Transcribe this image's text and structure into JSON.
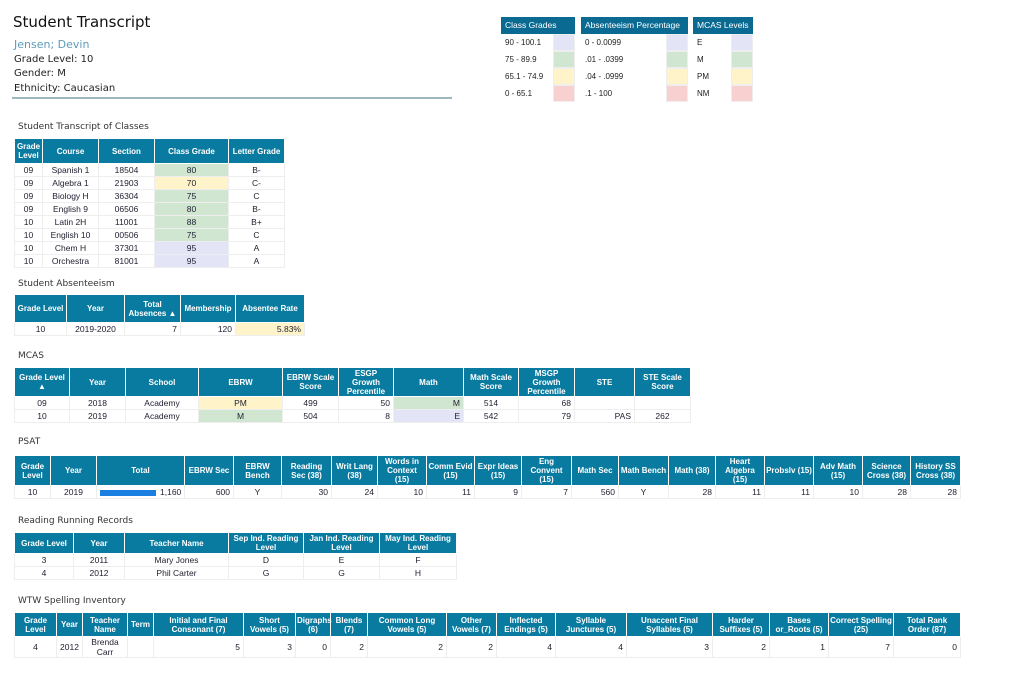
{
  "header": {
    "title": "Student Transcript",
    "student_name": "Jensen; Devin",
    "grade_level": "Grade Level: 10",
    "gender": "Gender: M",
    "ethnicity": "Ethnicity: Caucasian"
  },
  "colors": {
    "header": "#0a7ba0",
    "blue": "#e4e4f7",
    "green": "#d1e6d1",
    "yellow": "#fff4c9",
    "red": "#f9d0d0"
  },
  "legends": [
    {
      "title": "Class Grades",
      "rows": [
        {
          "label": "90 - 100.1",
          "color": "blue"
        },
        {
          "label": "75 - 89.9",
          "color": "green"
        },
        {
          "label": "65.1 - 74.9",
          "color": "yellow"
        },
        {
          "label": "0 - 65.1",
          "color": "red"
        }
      ]
    },
    {
      "title": "Absenteeism Percentage",
      "rows": [
        {
          "label": "0 - 0.0099",
          "color": "blue"
        },
        {
          "label": ".01 - .0399",
          "color": "green"
        },
        {
          "label": ".04 - .0999",
          "color": "yellow"
        },
        {
          "label": ".1 - 100",
          "color": "red"
        }
      ]
    },
    {
      "title": "MCAS Levels",
      "rows": [
        {
          "label": "E",
          "color": "blue"
        },
        {
          "label": "M",
          "color": "green"
        },
        {
          "label": "PM",
          "color": "yellow"
        },
        {
          "label": "NM",
          "color": "red"
        }
      ]
    }
  ],
  "tables": {
    "transcript": {
      "title": "Student Transcript of Classes",
      "columns": [
        "Grade Level",
        "Course",
        "Section",
        "Class Grade",
        "Letter Grade"
      ],
      "rows": [
        [
          "09",
          "Spanish 1",
          "18504",
          "80",
          "B-"
        ],
        [
          "09",
          "Algebra 1",
          "21903",
          "70",
          "C-"
        ],
        [
          "09",
          "Biology H",
          "36304",
          "75",
          "C"
        ],
        [
          "09",
          "English 9",
          "06506",
          "80",
          "B-"
        ],
        [
          "10",
          "Latin 2H",
          "11001",
          "88",
          "B+"
        ],
        [
          "10",
          "English 10",
          "00506",
          "75",
          "C"
        ],
        [
          "10",
          "Chem H",
          "37301",
          "95",
          "A"
        ],
        [
          "10",
          "Orchestra",
          "81001",
          "95",
          "A"
        ]
      ],
      "cell_colors": [
        [
          null,
          null,
          null,
          "green",
          null
        ],
        [
          null,
          null,
          null,
          "yellow",
          null
        ],
        [
          null,
          null,
          null,
          "green",
          null
        ],
        [
          null,
          null,
          null,
          "green",
          null
        ],
        [
          null,
          null,
          null,
          "green",
          null
        ],
        [
          null,
          null,
          null,
          "green",
          null
        ],
        [
          null,
          null,
          null,
          "blue",
          null
        ],
        [
          null,
          null,
          null,
          "blue",
          null
        ]
      ]
    },
    "absenteeism": {
      "title": "Student Absenteeism",
      "columns": [
        "Grade Level",
        "Year",
        "Total Absences ▲",
        "Membership",
        "Absentee Rate"
      ],
      "rows": [
        [
          "10",
          "2019-2020",
          "7",
          "120",
          "5.83%"
        ]
      ],
      "cell_colors": [
        [
          null,
          null,
          null,
          null,
          "yellow"
        ]
      ]
    },
    "mcas": {
      "title": "MCAS",
      "columns": [
        "Grade Level ▲",
        "Year",
        "School",
        "EBRW",
        "EBRW Scale Score",
        "ESGP Growth Percentile",
        "Math",
        "Math Scale Score",
        "MSGP Growth Percentile",
        "STE",
        "STE Scale Score"
      ],
      "rows": [
        [
          "09",
          "2018",
          "Academy",
          "PM",
          "499",
          "50",
          "M",
          "514",
          "68",
          "",
          ""
        ],
        [
          "10",
          "2019",
          "Academy",
          "M",
          "504",
          "8",
          "E",
          "542",
          "79",
          "PAS",
          "262"
        ]
      ],
      "cell_colors": [
        [
          null,
          null,
          null,
          "yellow",
          null,
          null,
          "green",
          null,
          null,
          null,
          null
        ],
        [
          null,
          null,
          null,
          "green",
          null,
          null,
          "blue",
          null,
          null,
          null,
          null
        ]
      ]
    },
    "psat": {
      "title": "PSAT",
      "columns": [
        "Grade Level",
        "Year",
        "Total",
        "EBRW Sec",
        "EBRW Bench",
        "Reading Sec (38)",
        "Writ Lang (38)",
        "Words in Context (15)",
        "Comm Evid (15)",
        "Expr Ideas (15)",
        "Eng Convent (15)",
        "Math Sec",
        "Math Bench",
        "Math (38)",
        "Heart Algebra (15)",
        "Probslv (15)",
        "Adv Math (15)",
        "Science Cross (38)",
        "History SS Cross (38)"
      ],
      "rows": [
        [
          "10",
          "2019",
          "1,160",
          "600",
          "Y",
          "30",
          "24",
          "10",
          "11",
          "9",
          "7",
          "560",
          "Y",
          "28",
          "11",
          "11",
          "10",
          "28",
          "28"
        ]
      ],
      "total_bar_fraction": 0.72
    },
    "reading": {
      "title": "Reading Running Records",
      "columns": [
        "Grade Level",
        "Year",
        "Teacher Name",
        "Sep Ind. Reading Level",
        "Jan Ind. Reading Level",
        "May Ind. Reading Level"
      ],
      "rows": [
        [
          "3",
          "2011",
          "Mary Jones",
          "D",
          "E",
          "F"
        ],
        [
          "4",
          "2012",
          "Phil Carter",
          "G",
          "G",
          "H"
        ]
      ]
    },
    "wtw": {
      "title": "WTW Spelling Inventory",
      "columns": [
        "Grade Level",
        "Year",
        "Teacher Name",
        "Term",
        "Initial and Final Consonant (7)",
        "Short Vowels (5)",
        "Digraphs (6)",
        "Blends (7)",
        "Common Long Vowels (5)",
        "Other Vowels (7)",
        "Inflected Endings (5)",
        "Syllable Junctures (5)",
        "Unaccent Final Syllables (5)",
        "Harder Suffixes (5)",
        "Bases or_Roots (5)",
        "Correct Spelling (25)",
        "Total Rank Order (87)"
      ],
      "rows": [
        [
          "4",
          "2012",
          "Brenda Carr",
          "",
          "5",
          "3",
          "0",
          "2",
          "2",
          "2",
          "4",
          "4",
          "3",
          "2",
          "1",
          "7",
          "0"
        ]
      ]
    }
  }
}
